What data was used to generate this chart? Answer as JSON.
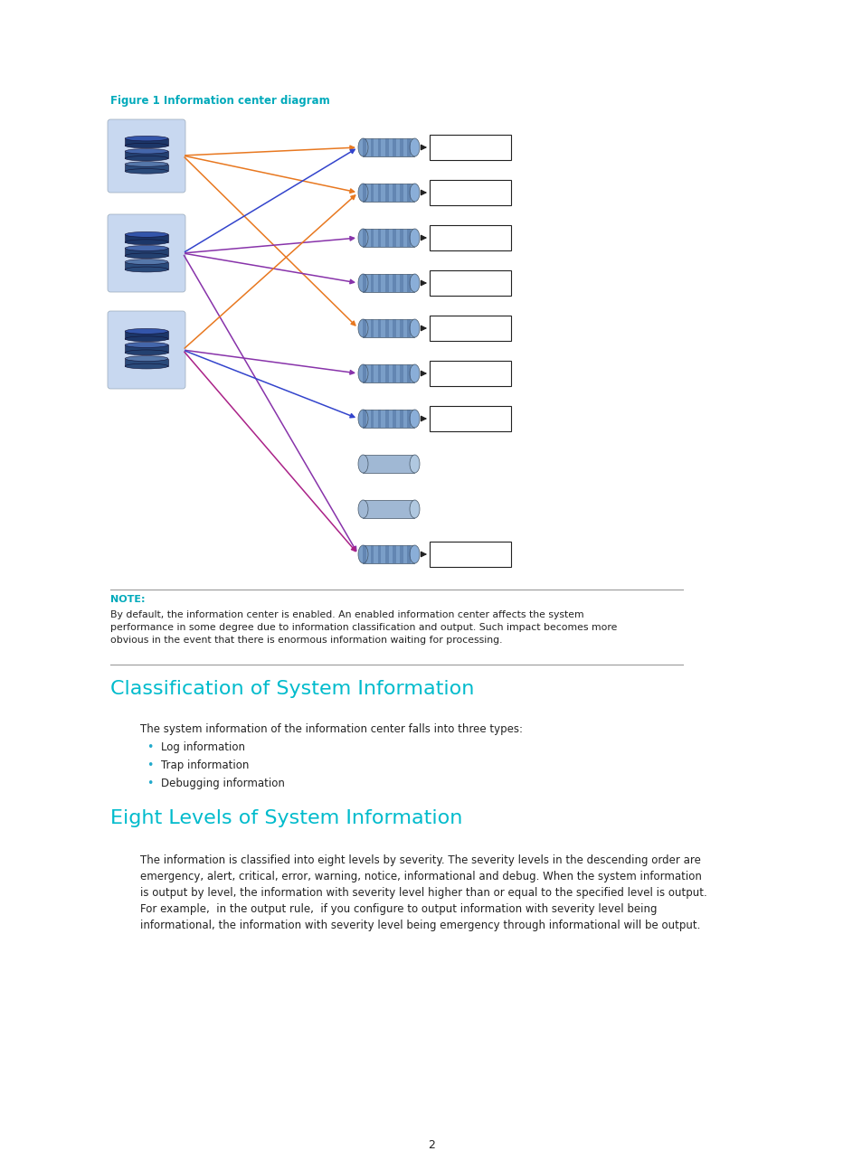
{
  "figure_label": "Figure 1 Information center diagram",
  "figure_label_color": "#00AABB",
  "page_bg": "#FFFFFF",
  "note_label": "NOTE:",
  "note_label_color": "#00AABB",
  "note_text": "By default, the information center is enabled. An enabled information center affects the system\nperformance in some degree due to information classification and output. Such impact becomes more\nobvious in the event that there is enormous information waiting for processing.",
  "section1_title": "Classification of System Information",
  "section1_color": "#00BBCC",
  "section1_intro": "The system information of the information center falls into three types:",
  "section1_bullets": [
    "Log information",
    "Trap information",
    "Debugging information"
  ],
  "section2_title": "Eight Levels of System Information",
  "section2_color": "#00BBCC",
  "section2_text": "The information is classified into eight levels by severity. The severity levels in the descending order are\nemergency, alert, critical, error, warning, notice, informational and debug. When the system information\nis output by level, the information with severity level higher than or equal to the specified level is output.\nFor example,  in the output rule,  if you configure to output information with severity level being\ninformational, the information with severity level being emergency through informational will be output.",
  "page_number": "2",
  "fig_w": 954,
  "fig_h": 1294,
  "box_color": "#C8D8F0",
  "cyl_body_striped": "#7A9EC8",
  "cyl_body_plain": "#A0B8D4",
  "cyl_stripe": "#3A5A8A",
  "cyl_top_striped": "#8AAED8",
  "cyl_top_plain": "#B0C8E0",
  "arrow_orange": "#E87820",
  "arrow_blue": "#3344CC",
  "arrow_purple": "#8833AA",
  "arrow_magenta": "#AA2288"
}
